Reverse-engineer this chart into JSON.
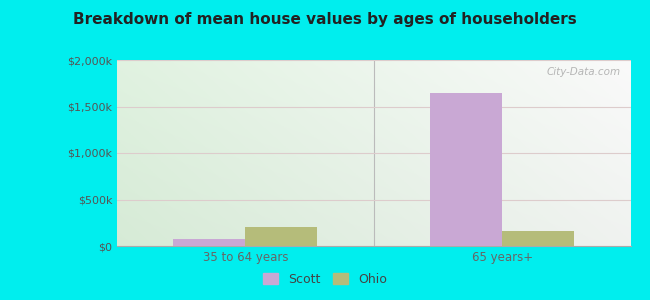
{
  "title": "Breakdown of mean house values by ages of householders",
  "categories": [
    "35 to 64 years",
    "65 years+"
  ],
  "scott_values": [
    75000,
    1650000
  ],
  "ohio_values": [
    200000,
    165000
  ],
  "scott_color": "#c9a8d4",
  "ohio_color": "#b5bc7a",
  "background_color": "#00eeee",
  "plot_bg_topleft": "#d8f0d8",
  "plot_bg_topright": "#f5f5ee",
  "plot_bg_bottomleft": "#c8e8c8",
  "plot_bg_bottomright": "#eef5ee",
  "ylim": [
    0,
    2000000
  ],
  "yticks": [
    0,
    500000,
    1000000,
    1500000,
    2000000
  ],
  "ytick_labels": [
    "$0",
    "$500k",
    "$1,000k",
    "$1,500k",
    "$2,000k"
  ],
  "legend_labels": [
    "Scott",
    "Ohio"
  ],
  "bar_width": 0.28,
  "watermark": "City-Data.com",
  "grid_color": "#ddcccc",
  "divider_color": "#bbbbbb"
}
